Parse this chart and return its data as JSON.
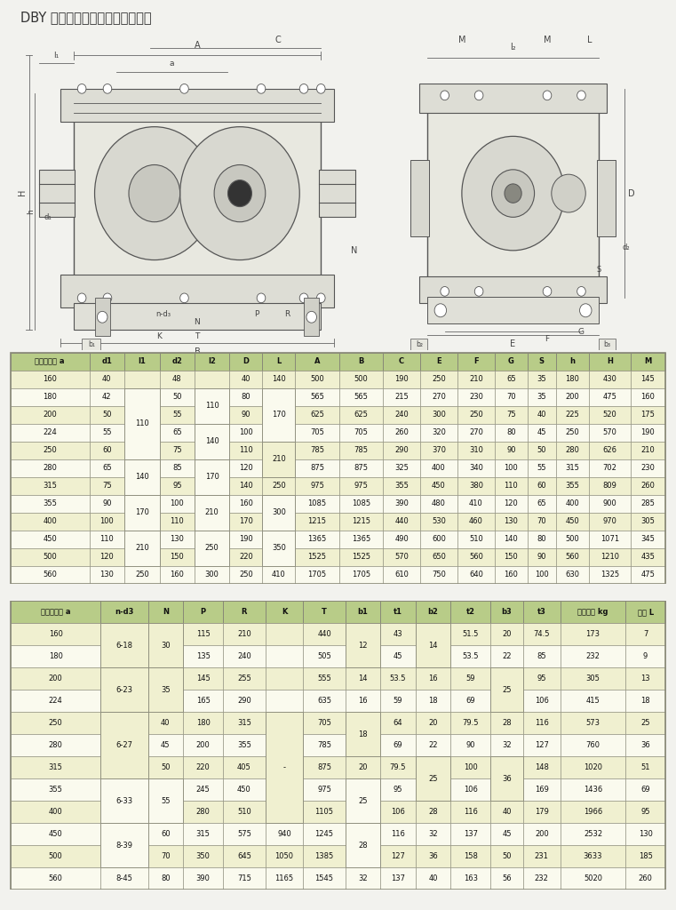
{
  "title": "DBY 型减速器外形尺寸及安装尺寸",
  "bg_color": "#f2f2ee",
  "table1_header": [
    "名义中心距 a",
    "d1",
    "l1",
    "d2",
    "l2",
    "D",
    "L",
    "A",
    "B",
    "C",
    "E",
    "F",
    "G",
    "S",
    "h",
    "H",
    "M"
  ],
  "table1_data": [
    [
      "160",
      "40",
      "",
      "48",
      "",
      "40",
      "140",
      "500",
      "500",
      "190",
      "250",
      "210",
      "65",
      "35",
      "180",
      "430",
      "145"
    ],
    [
      "180",
      "42",
      "110",
      "50",
      "110",
      "80",
      "170",
      "565",
      "565",
      "215",
      "270",
      "230",
      "70",
      "35",
      "200",
      "475",
      "160"
    ],
    [
      "200",
      "50",
      "",
      "55",
      "",
      "90",
      "",
      "625",
      "625",
      "240",
      "300",
      "250",
      "75",
      "40",
      "225",
      "520",
      "175"
    ],
    [
      "224",
      "55",
      "",
      "65",
      "140",
      "100",
      "",
      "705",
      "705",
      "260",
      "320",
      "270",
      "80",
      "45",
      "250",
      "570",
      "190"
    ],
    [
      "250",
      "60",
      "",
      "75",
      "",
      "110",
      "210",
      "785",
      "785",
      "290",
      "370",
      "310",
      "90",
      "50",
      "280",
      "626",
      "210"
    ],
    [
      "280",
      "65",
      "140",
      "85",
      "170",
      "120",
      "",
      "875",
      "875",
      "325",
      "400",
      "340",
      "100",
      "55",
      "315",
      "702",
      "230"
    ],
    [
      "315",
      "75",
      "",
      "95",
      "",
      "140",
      "250",
      "975",
      "975",
      "355",
      "450",
      "380",
      "110",
      "60",
      "355",
      "809",
      "260"
    ],
    [
      "355",
      "90",
      "170",
      "100",
      "210",
      "160",
      "300",
      "1085",
      "1085",
      "390",
      "480",
      "410",
      "120",
      "65",
      "400",
      "900",
      "285"
    ],
    [
      "400",
      "100",
      "",
      "110",
      "",
      "170",
      "",
      "1215",
      "1215",
      "440",
      "530",
      "460",
      "130",
      "70",
      "450",
      "970",
      "305"
    ],
    [
      "450",
      "110",
      "210",
      "130",
      "250",
      "190",
      "350",
      "1365",
      "1365",
      "490",
      "600",
      "510",
      "140",
      "80",
      "500",
      "1071",
      "345"
    ],
    [
      "500",
      "120",
      "",
      "150",
      "",
      "220",
      "",
      "1525",
      "1525",
      "570",
      "650",
      "560",
      "150",
      "90",
      "560",
      "1210",
      "435"
    ],
    [
      "560",
      "130",
      "250",
      "160",
      "300",
      "250",
      "410",
      "1705",
      "1705",
      "610",
      "750",
      "640",
      "160",
      "100",
      "630",
      "1325",
      "475"
    ]
  ],
  "table2_header": [
    "名义中心距 a",
    "n-d3",
    "N",
    "P",
    "R",
    "K",
    "T",
    "b1",
    "t1",
    "b2",
    "t2",
    "b3",
    "t3",
    "平均重量 kg",
    "油量 L"
  ],
  "table2_data": [
    [
      "160",
      "6-18",
      "30",
      "115",
      "210",
      "",
      "440",
      "12",
      "43",
      "14",
      "51.5",
      "20",
      "74.5",
      "173",
      "7"
    ],
    [
      "180",
      "",
      "",
      "135",
      "240",
      "",
      "505",
      "",
      "45",
      "",
      "53.5",
      "22",
      "85",
      "232",
      "9"
    ],
    [
      "200",
      "6-23",
      "35",
      "145",
      "255",
      "",
      "555",
      "14",
      "53.5",
      "16",
      "59",
      "25",
      "95",
      "305",
      "13"
    ],
    [
      "224",
      "",
      "",
      "165",
      "290",
      "",
      "635",
      "16",
      "59",
      "18",
      "69",
      "",
      "106",
      "415",
      "18"
    ],
    [
      "250",
      "6-27",
      "40",
      "180",
      "315",
      "-",
      "705",
      "18",
      "64",
      "20",
      "79.5",
      "28",
      "116",
      "573",
      "25"
    ],
    [
      "280",
      "",
      "45",
      "200",
      "355",
      "",
      "785",
      "",
      "69",
      "22",
      "90",
      "32",
      "127",
      "760",
      "36"
    ],
    [
      "315",
      "",
      "50",
      "220",
      "405",
      "",
      "875",
      "20",
      "79.5",
      "25",
      "100",
      "36",
      "148",
      "1020",
      "51"
    ],
    [
      "355",
      "6-33",
      "55",
      "245",
      "450",
      "",
      "975",
      "25",
      "95",
      "",
      "106",
      "",
      "169",
      "1436",
      "69"
    ],
    [
      "400",
      "",
      "",
      "280",
      "510",
      "",
      "1105",
      "",
      "106",
      "28",
      "116",
      "40",
      "179",
      "1966",
      "95"
    ],
    [
      "450",
      "8-39",
      "60",
      "315",
      "575",
      "940",
      "1245",
      "28",
      "116",
      "32",
      "137",
      "45",
      "200",
      "2532",
      "130"
    ],
    [
      "500",
      "",
      "70",
      "350",
      "645",
      "1050",
      "1385",
      "",
      "127",
      "36",
      "158",
      "50",
      "231",
      "3633",
      "185"
    ],
    [
      "560",
      "8-45",
      "80",
      "390",
      "715",
      "1165",
      "1545",
      "32",
      "137",
      "40",
      "163",
      "56",
      "232",
      "5020",
      "260"
    ]
  ],
  "header_bg": "#b8cc88",
  "row_bg_odd": "#f0f0d0",
  "row_bg_even": "#fafaee",
  "border_color": "#888877",
  "text_color": "#111111",
  "header_text_color": "#111111",
  "diag_bg": "#f0efe8"
}
